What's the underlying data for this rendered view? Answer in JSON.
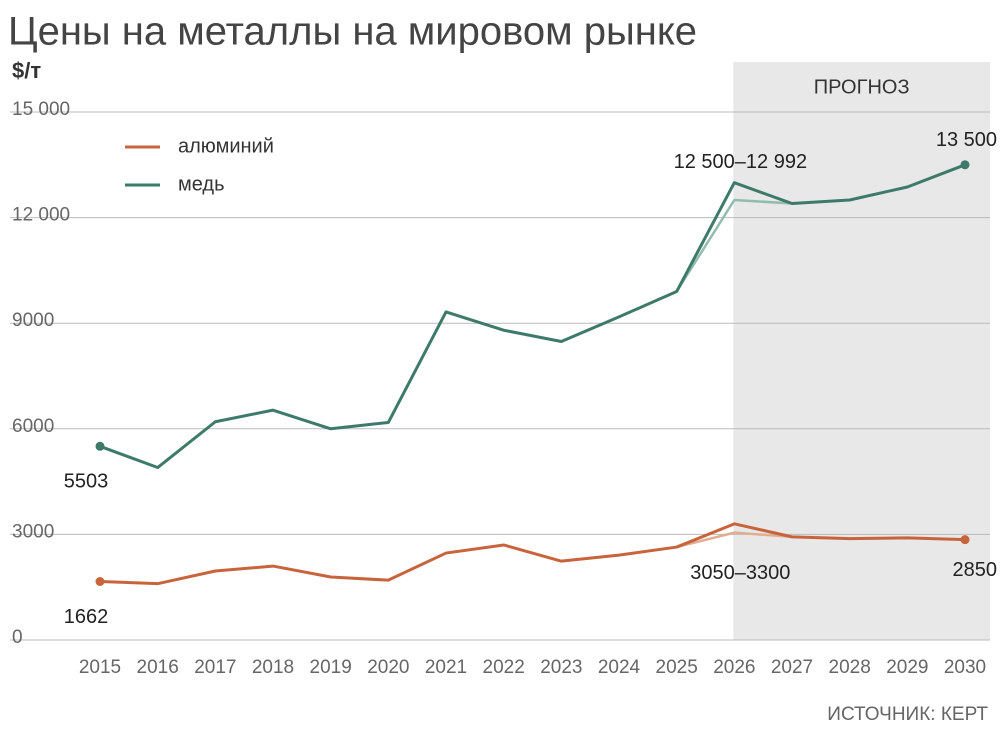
{
  "chart_data": {
    "type": "line",
    "title": "Цены на металлы на мировом рынке",
    "y_label": "$/т",
    "source": "ИСТОЧНИК: КЕРТ",
    "forecast_label": "ПРОГНОЗ",
    "forecast_from": 2026,
    "x": [
      2015,
      2016,
      2017,
      2018,
      2019,
      2020,
      2021,
      2022,
      2023,
      2024,
      2025,
      2026,
      2027,
      2028,
      2029,
      2030
    ],
    "xlim": [
      2015,
      2030
    ],
    "ylim": [
      0,
      15000
    ],
    "yticks": [
      0,
      3000,
      6000,
      9000,
      {
        "value": 12000,
        "label": "12 000"
      },
      {
        "value": 15000,
        "label": "15 000"
      }
    ],
    "grid": true,
    "endpoint_markers": true,
    "series": [
      {
        "name": "алюминий",
        "color": "#c8643c",
        "alt_color": "#e3ad92",
        "values": [
          1662,
          1600,
          1960,
          2100,
          1790,
          1700,
          2470,
          2700,
          2240,
          2410,
          2640,
          3300,
          2930,
          2880,
          2900,
          2850
        ],
        "alt_values": [
          null,
          null,
          null,
          null,
          null,
          null,
          null,
          null,
          null,
          null,
          2640,
          3050,
          2930,
          null,
          null,
          null
        ],
        "value_labels": [
          "1662",
          null,
          null,
          null,
          null,
          null,
          null,
          null,
          null,
          null,
          null,
          "3050–3300",
          null,
          null,
          null,
          "2850"
        ]
      },
      {
        "name": "медь",
        "color": "#3d7a6a",
        "alt_color": "#92bcae",
        "values": [
          5503,
          4900,
          6200,
          6530,
          6000,
          6180,
          9320,
          8800,
          8480,
          9180,
          9900,
          12992,
          12400,
          12500,
          12870,
          13500
        ],
        "alt_values": [
          null,
          null,
          null,
          null,
          null,
          null,
          null,
          null,
          null,
          null,
          9900,
          12500,
          12400,
          null,
          null,
          null
        ],
        "value_labels": [
          "5503",
          null,
          null,
          null,
          null,
          null,
          null,
          null,
          null,
          null,
          null,
          "12 500–12 992",
          null,
          null,
          null,
          "13 500"
        ]
      }
    ]
  }
}
